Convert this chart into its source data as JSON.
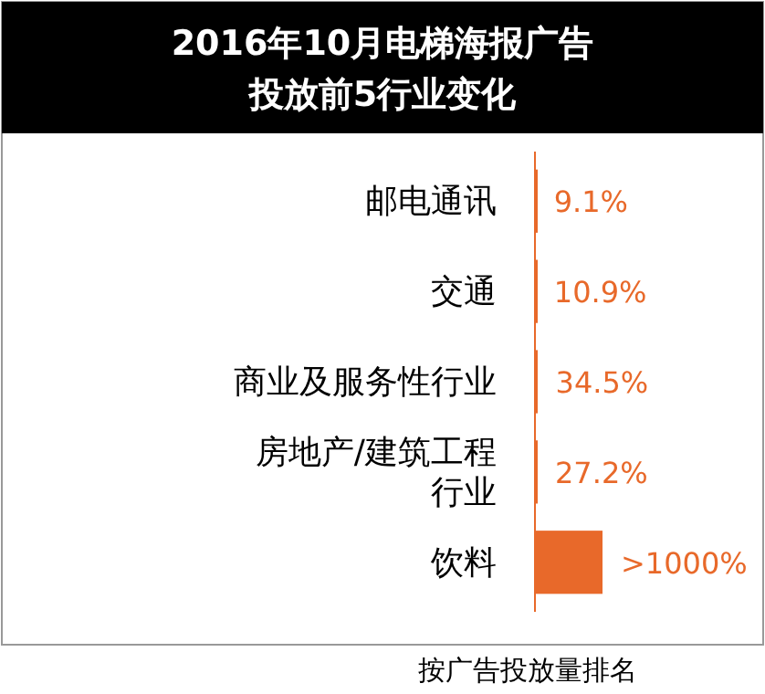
{
  "chart_data": {
    "type": "bar",
    "orientation": "horizontal",
    "title": "2016年10月电梯海报广告投放前5行业变化",
    "categories": [
      "邮电通讯",
      "交通",
      "商业及服务性行业",
      "房地产/建筑工程行业",
      "饮料"
    ],
    "values": [
      9.1,
      10.9,
      34.5,
      27.2,
      1000
    ],
    "value_labels": [
      "9.1%",
      "10.9%",
      "34.5%",
      "27.2%",
      ">1000%"
    ],
    "color": "#e8692a",
    "annotations": [
      "按广告投放量排名"
    ]
  }
}
